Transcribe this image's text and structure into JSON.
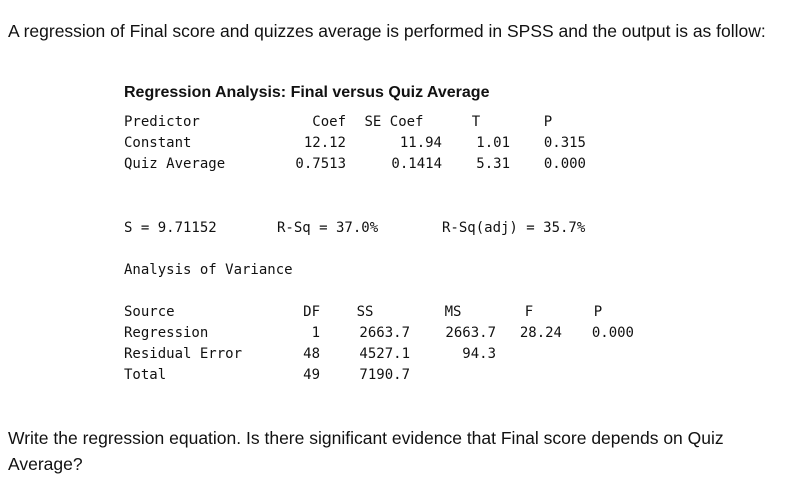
{
  "intro_text": "A regression of Final score and quizzes average is performed in SPSS and the output is as follow:",
  "output": {
    "title": "Regression Analysis: Final versus Quiz Average",
    "coefficients": {
      "headers": [
        "Predictor",
        "Coef",
        "SE Coef",
        "T",
        "P"
      ],
      "rows": [
        [
          "Constant",
          "12.12",
          "11.94",
          "1.01",
          "0.315"
        ],
        [
          "Quiz Average",
          "0.7513",
          "0.1414",
          "5.31",
          "0.000"
        ]
      ]
    },
    "summary": {
      "s": "S = 9.71152",
      "rsq": "R-Sq = 37.0%",
      "rsq_adj": "R-Sq(adj) = 35.7%"
    },
    "anova_title": "Analysis of Variance",
    "anova": {
      "headers": [
        "Source",
        "DF",
        "SS",
        "MS",
        "F",
        "P"
      ],
      "rows": [
        [
          "Regression",
          "1",
          "2663.7",
          "2663.7",
          "28.24",
          "0.000"
        ],
        [
          "Residual Error",
          "48",
          "4527.1",
          "94.3",
          "",
          ""
        ],
        [
          "Total",
          "49",
          "7190.7",
          "",
          "",
          ""
        ]
      ]
    }
  },
  "question_text": "Write the regression equation. Is there significant evidence that Final score depends on Quiz Average?"
}
